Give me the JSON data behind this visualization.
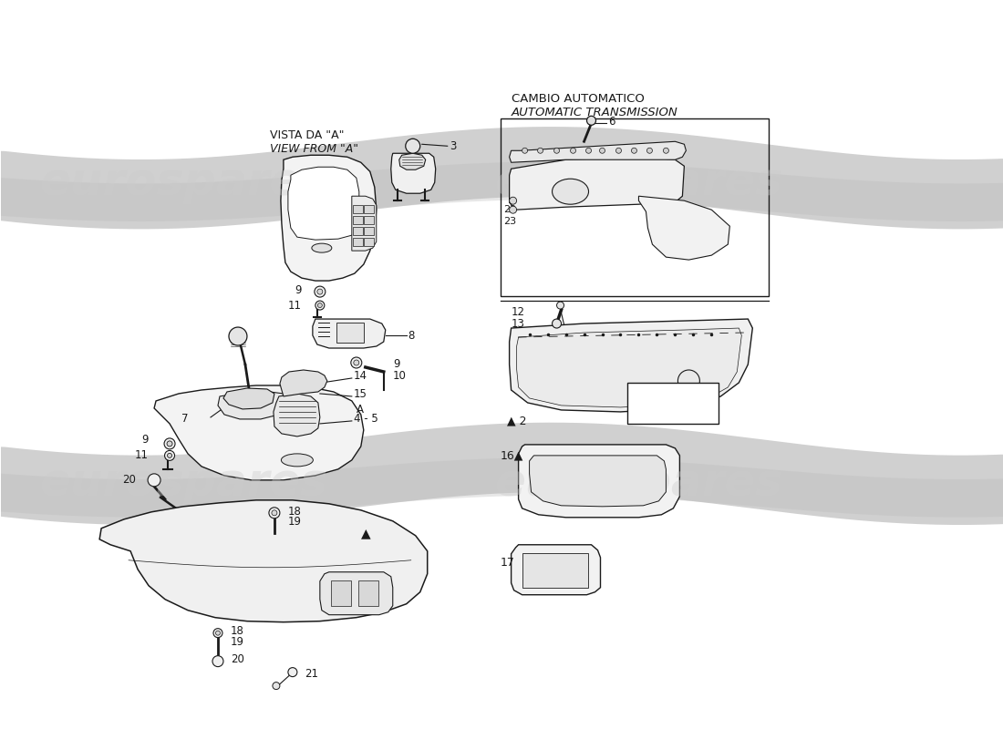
{
  "bg_color": "#ffffff",
  "lc": "#1a1a1a",
  "fc": "#f5f5f5",
  "wm_color": "#cccccc",
  "wm_alpha": 0.35,
  "wm_text": "eurospares",
  "title_italian": "CAMBIO AUTOMATICO",
  "title_english": "AUTOMATIC TRANSMISSION",
  "view_ita": "VISTA DA \"A\"",
  "view_eng": "VIEW FROM \"A\""
}
